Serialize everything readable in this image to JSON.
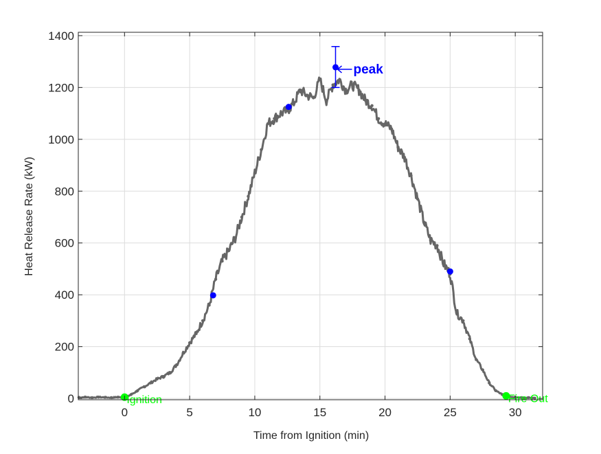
{
  "chart_data": {
    "type": "line",
    "xlabel": "Time from Ignition (min)",
    "ylabel": "Heat Release Rate (kW)",
    "xlim": [
      -3.55,
      32.1
    ],
    "ylim": [
      -5,
      1413
    ],
    "xticks": [
      0,
      5,
      10,
      15,
      20,
      25,
      30
    ],
    "yticks": [
      0,
      200,
      400,
      600,
      800,
      1000,
      1200,
      1400
    ],
    "grid": true,
    "series": [
      {
        "color": "#666666",
        "x": [
          -3.5,
          -3,
          -2.5,
          -2,
          -1.5,
          -1,
          -0.5,
          0,
          0.5,
          1,
          1.5,
          2,
          2.5,
          3,
          3.5,
          4,
          4.5,
          5,
          5.5,
          6,
          6.5,
          7,
          7.5,
          8,
          8.5,
          9,
          9.5,
          10,
          10.5,
          11,
          11.5,
          12,
          12.5,
          13,
          13.5,
          14,
          14.5,
          15,
          15.5,
          16,
          16.5,
          17,
          17.5,
          18,
          18.5,
          19,
          19.5,
          20,
          20.5,
          21,
          21.5,
          22,
          22.5,
          23,
          23.5,
          24,
          24.5,
          25,
          25.5,
          26,
          26.5,
          27,
          27.5,
          28,
          28.5,
          29,
          29.5,
          30,
          30.5,
          31,
          31.5
        ],
        "y": [
          4,
          5,
          3,
          5,
          4,
          3,
          5,
          2,
          15,
          30,
          45,
          60,
          75,
          85,
          100,
          130,
          175,
          215,
          250,
          300,
          360,
          460,
          530,
          570,
          620,
          700,
          780,
          870,
          960,
          1060,
          1080,
          1100,
          1110,
          1140,
          1190,
          1170,
          1160,
          1230,
          1150,
          1210,
          1230,
          1190,
          1210,
          1190,
          1150,
          1130,
          1080,
          1060,
          1040,
          970,
          930,
          860,
          770,
          680,
          610,
          590,
          520,
          480,
          330,
          300,
          230,
          150,
          110,
          60,
          30,
          15,
          8,
          5,
          3,
          3,
          1
        ]
      }
    ],
    "markers": [
      {
        "x": 6.8,
        "y": 398,
        "color": "#0000ff"
      },
      {
        "x": 12.6,
        "y": 1125,
        "color": "#0000ff"
      },
      {
        "x": 16.2,
        "y": 1278,
        "color": "#0000ff",
        "error": [
          1200,
          1358
        ]
      },
      {
        "x": 25.0,
        "y": 490,
        "color": "#0000ff"
      }
    ],
    "events": [
      {
        "x": 0,
        "y": 5,
        "label": "Ignition",
        "color": "#00ff00"
      },
      {
        "x": 29.3,
        "y": 10,
        "label": "Fire Out",
        "color": "#00ff00"
      }
    ],
    "annotation": {
      "text": "peak",
      "x": 16.2,
      "y": 1278,
      "color": "#0000ff"
    }
  }
}
